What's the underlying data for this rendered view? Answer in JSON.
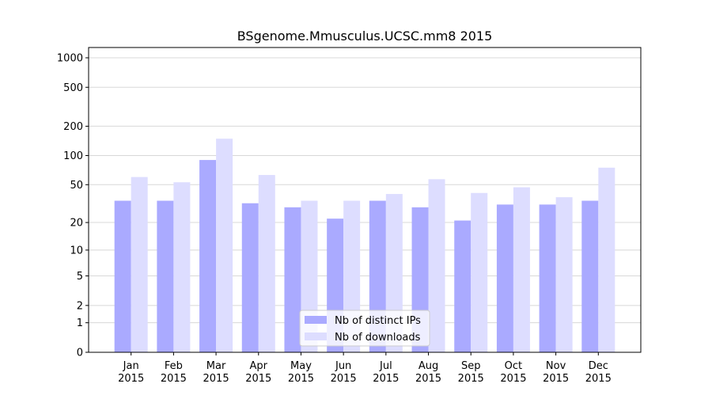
{
  "chart_data": {
    "type": "bar",
    "title": "BSgenome.Mmusculus.UCSC.mm8 2015",
    "categories": [
      "Jan\n2015",
      "Feb\n2015",
      "Mar\n2015",
      "Apr\n2015",
      "May\n2015",
      "Jun\n2015",
      "Jul\n2015",
      "Aug\n2015",
      "Sep\n2015",
      "Oct\n2015",
      "Nov\n2015",
      "Dec\n2015"
    ],
    "series": [
      {
        "name": "Nb of distinct IPs",
        "color": "#aaaaff",
        "values": [
          34,
          34,
          90,
          32,
          29,
          22,
          34,
          29,
          21,
          31,
          31,
          34
        ]
      },
      {
        "name": "Nb of downloads",
        "color": "#ddddff",
        "values": [
          60,
          53,
          149,
          63,
          34,
          34,
          40,
          57,
          41,
          47,
          37,
          75
        ]
      }
    ],
    "yscale": "log1p",
    "ylim": [
      0,
      1273
    ],
    "yticks": [
      0,
      1,
      2,
      5,
      10,
      20,
      50,
      100,
      200,
      500,
      1000
    ],
    "grid": true,
    "legend": "lower center"
  }
}
